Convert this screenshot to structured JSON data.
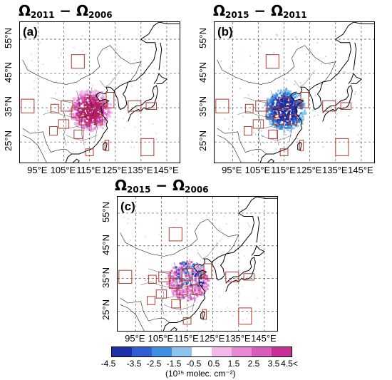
{
  "panels": [
    {
      "id": "a",
      "label": "(a)",
      "title_a": "Ω",
      "sub_a": "2011",
      "title_b": "Ω",
      "sub_b": "2006",
      "minus": "−",
      "signal": "positive"
    },
    {
      "id": "b",
      "label": "(b)",
      "title_a": "Ω",
      "sub_a": "2015",
      "title_b": "Ω",
      "sub_b": "2011",
      "minus": "−",
      "signal": "negative"
    },
    {
      "id": "c",
      "label": "(c)",
      "title_a": "Ω",
      "sub_a": "2015",
      "title_b": "Ω",
      "sub_b": "2006",
      "minus": "−",
      "signal": "mixed"
    }
  ],
  "axes": {
    "lon_labels": [
      "95°E",
      "105°E",
      "115°E",
      "125°E",
      "135°E",
      "145°E"
    ],
    "lat_labels": [
      "55°N",
      "45°N",
      "35°N",
      "25°N"
    ]
  },
  "colorbar": {
    "tick_labels": [
      "-4.5",
      "-3.5",
      "-2.5",
      "-1.5",
      "-0.5",
      "0.5",
      "1.5",
      "2.5",
      "3.5",
      "4.5<"
    ],
    "unit_text": "(10¹⁵ molec. cm⁻²)",
    "colors": [
      "#1f2fa8",
      "#2f5fd0",
      "#3d8fe0",
      "#8cc4ee",
      "#ffffff",
      "#f2b8e8",
      "#e68ad8",
      "#d65cc0",
      "#c83098"
    ]
  },
  "colors": {
    "region_box": "#b03a2e",
    "coast": "#000000",
    "grid": "#555555"
  }
}
